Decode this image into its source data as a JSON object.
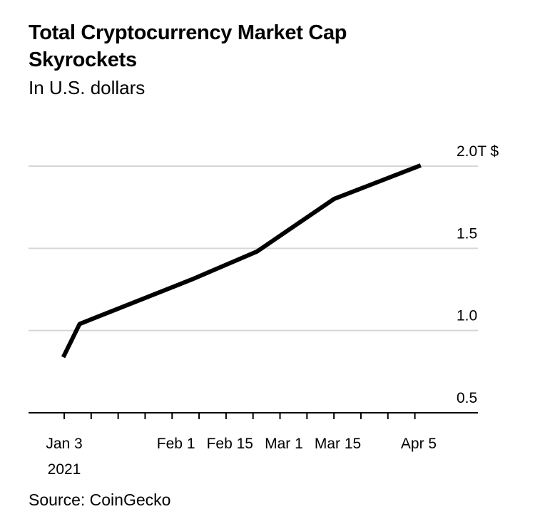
{
  "header": {
    "title": "Total Cryptocurrency Market Cap Skyrockets",
    "subtitle": "In U.S. dollars"
  },
  "footer": {
    "source": "Source: CoinGecko"
  },
  "colors": {
    "line": "#000000",
    "grid": "#d6d6d6",
    "axis": "#000000",
    "background": "#ffffff"
  },
  "chart_data": {
    "type": "line",
    "title": "Total Cryptocurrency Market Cap Skyrockets",
    "subtitle": "In U.S. dollars",
    "xlabel": "",
    "ylabel": "",
    "x_range": [
      "2021-01-03",
      "2021-04-05"
    ],
    "ylim": [
      0.5,
      2.0
    ],
    "y_ticks": [
      {
        "value": 2.0,
        "label": "2.0T $"
      },
      {
        "value": 1.5,
        "label": "1.5"
      },
      {
        "value": 1.0,
        "label": "1.0"
      },
      {
        "value": 0.5,
        "label": "0.5"
      }
    ],
    "x_ticks": [
      {
        "date": "2021-01-03",
        "label": "Jan 3",
        "sublabel": "2021"
      },
      {
        "date": "2021-02-01",
        "label": "Feb 1"
      },
      {
        "date": "2021-02-15",
        "label": "Feb 15"
      },
      {
        "date": "2021-03-01",
        "label": "Mar 1"
      },
      {
        "date": "2021-03-15",
        "label": "Mar 15"
      },
      {
        "date": "2021-04-05",
        "label": "Apr 5"
      }
    ],
    "grid": true,
    "legend": "none",
    "series": [
      {
        "x": [
          "2021-01-03",
          "2021-01-07",
          "2021-02-05",
          "2021-02-22",
          "2021-03-14",
          "2021-04-05"
        ],
        "y": [
          0.85,
          1.04,
          1.31,
          1.48,
          1.8,
          2.0
        ]
      }
    ]
  }
}
